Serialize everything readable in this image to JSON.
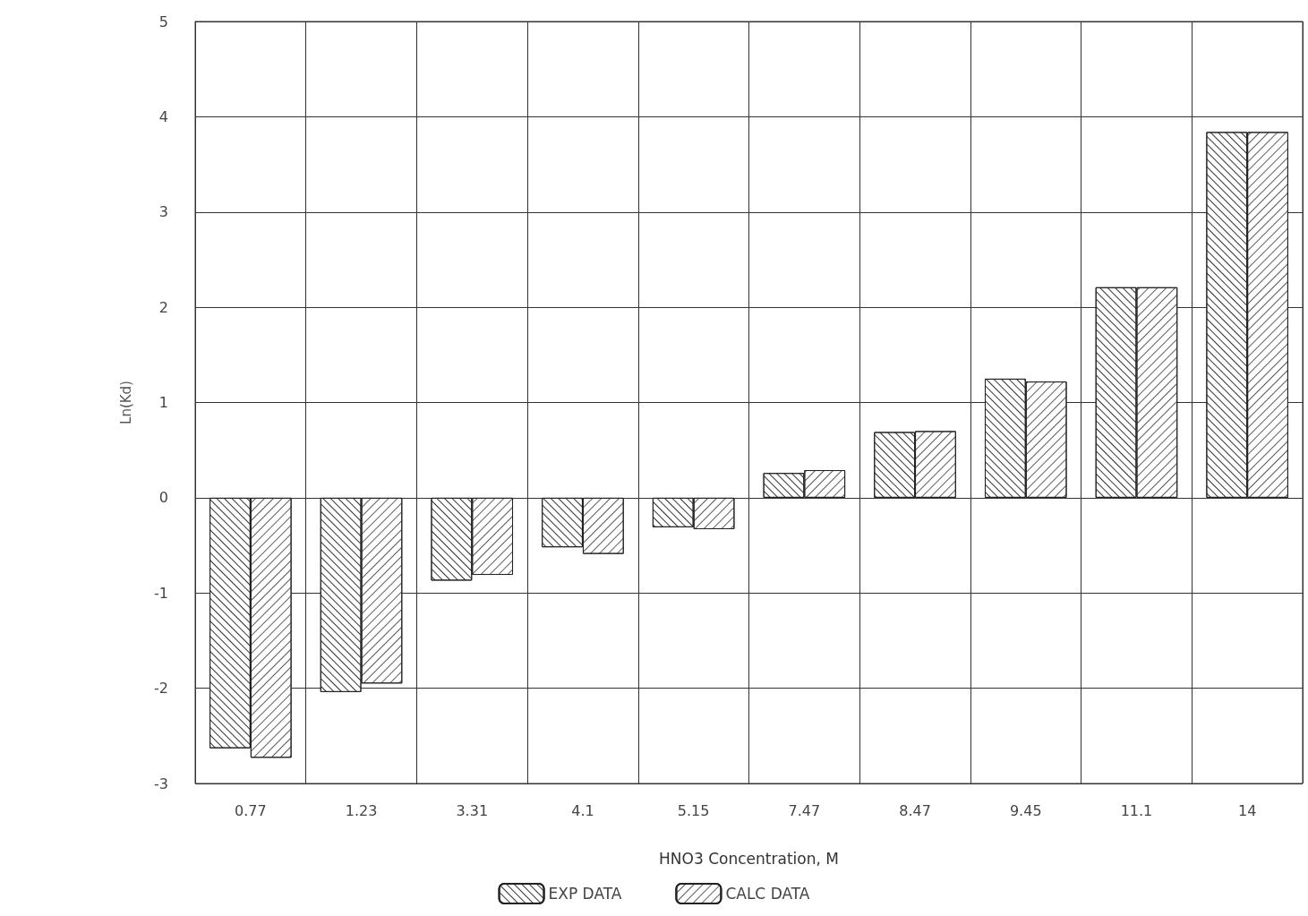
{
  "chart_data": {
    "type": "bar",
    "xlabel": "HNO3 Concentration, M",
    "ylabel": "Ln(Kd)",
    "categories": [
      "0.77",
      "1.23",
      "3.31",
      "4.1",
      "5.15",
      "7.47",
      "8.47",
      "9.45",
      "11.1",
      "14"
    ],
    "series": [
      {
        "name": "EXP DATA",
        "color": "#ffffff",
        "values": [
          -2.63,
          -2.04,
          -0.87,
          -0.52,
          -0.31,
          0.26,
          0.69,
          1.25,
          2.21,
          3.84
        ]
      },
      {
        "name": "CALC DATA",
        "color": "#ffffff",
        "values": [
          -2.73,
          -1.95,
          -0.81,
          -0.59,
          -0.33,
          0.29,
          0.7,
          1.22,
          2.21,
          3.84
        ]
      }
    ],
    "ylim": [
      -3,
      5
    ],
    "yticks": [
      -3,
      -2,
      -1,
      0,
      1,
      2,
      3,
      4,
      5
    ],
    "grid": true,
    "legend": "bottom"
  }
}
